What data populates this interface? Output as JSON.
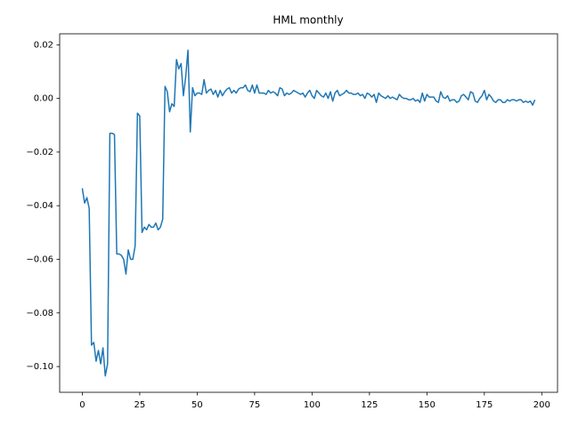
{
  "chart_data": {
    "type": "line",
    "title": "HML monthly",
    "color": "#1f77b4",
    "x": [
      0,
      1,
      2,
      3,
      4,
      5,
      6,
      7,
      8,
      9,
      10,
      11,
      12,
      13,
      14,
      15,
      16,
      17,
      18,
      19,
      20,
      21,
      22,
      23,
      24,
      25,
      26,
      27,
      28,
      29,
      30,
      31,
      32,
      33,
      34,
      35,
      36,
      37,
      38,
      39,
      40,
      41,
      42,
      43,
      44,
      45,
      46,
      47,
      48,
      49,
      50,
      51,
      52,
      53,
      54,
      55,
      56,
      57,
      58,
      59,
      60,
      61,
      62,
      63,
      64,
      65,
      66,
      67,
      68,
      69,
      70,
      71,
      72,
      73,
      74,
      75,
      76,
      77,
      78,
      79,
      80,
      81,
      82,
      83,
      84,
      85,
      86,
      87,
      88,
      89,
      90,
      91,
      92,
      93,
      94,
      95,
      96,
      97,
      98,
      99,
      100,
      101,
      102,
      103,
      104,
      105,
      106,
      107,
      108,
      109,
      110,
      111,
      112,
      113,
      114,
      115,
      116,
      117,
      118,
      119,
      120,
      121,
      122,
      123,
      124,
      125,
      126,
      127,
      128,
      129,
      130,
      131,
      132,
      133,
      134,
      135,
      136,
      137,
      138,
      139,
      140,
      141,
      142,
      143,
      144,
      145,
      146,
      147,
      148,
      149,
      150,
      151,
      152,
      153,
      154,
      155,
      156,
      157,
      158,
      159,
      160,
      161,
      162,
      163,
      164,
      165,
      166,
      167,
      168,
      169,
      170,
      171,
      172,
      173,
      174,
      175,
      176,
      177,
      178,
      179,
      180,
      181,
      182,
      183,
      184,
      185,
      186,
      187,
      188,
      189,
      190,
      191,
      192,
      193,
      194,
      195,
      196,
      197
    ],
    "values": [
      -0.0335,
      -0.039,
      -0.037,
      -0.041,
      -0.092,
      -0.091,
      -0.098,
      -0.094,
      -0.099,
      -0.093,
      -0.1035,
      -0.099,
      -0.013,
      -0.013,
      -0.0135,
      -0.058,
      -0.058,
      -0.0585,
      -0.06,
      -0.0655,
      -0.0565,
      -0.06,
      -0.06,
      -0.055,
      -0.0055,
      -0.0065,
      -0.05,
      -0.048,
      -0.049,
      -0.047,
      -0.048,
      -0.048,
      -0.0465,
      -0.049,
      -0.048,
      -0.045,
      0.0045,
      0.0025,
      -0.005,
      -0.002,
      -0.003,
      0.0145,
      0.011,
      0.013,
      0.001,
      0.008,
      0.018,
      -0.0125,
      0.004,
      0.001,
      0.002,
      0.002,
      0.0015,
      0.007,
      0.002,
      0.003,
      0.0035,
      0.0015,
      0.003,
      0.0005,
      0.003,
      0.001,
      0.0025,
      0.0035,
      0.004,
      0.002,
      0.003,
      0.002,
      0.0035,
      0.004,
      0.004,
      0.005,
      0.003,
      0.0025,
      0.005,
      0.002,
      0.005,
      0.002,
      0.002,
      0.002,
      0.0015,
      0.003,
      0.002,
      0.0025,
      0.002,
      0.001,
      0.004,
      0.0035,
      0.001,
      0.002,
      0.0015,
      0.002,
      0.003,
      0.0025,
      0.002,
      0.0015,
      0.002,
      0.0005,
      0.002,
      0.003,
      0.001,
      0.0,
      0.003,
      0.002,
      0.001,
      0.0005,
      0.002,
      0.0,
      0.0025,
      -0.001,
      0.002,
      0.003,
      0.001,
      0.0015,
      0.002,
      0.003,
      0.002,
      0.002,
      0.0015,
      0.0015,
      0.002,
      0.001,
      0.0015,
      0.0,
      0.002,
      0.0015,
      0.0005,
      0.0015,
      -0.0015,
      0.002,
      0.001,
      0.0005,
      0.0,
      0.001,
      0.0,
      0.0005,
      0.0,
      -0.0005,
      0.0015,
      0.0005,
      0.0,
      0.0,
      -0.0005,
      -0.0005,
      0.0,
      -0.001,
      -0.0005,
      -0.0015,
      0.002,
      -0.001,
      0.0015,
      0.0005,
      0.0005,
      0.0005,
      -0.001,
      -0.0015,
      0.0025,
      0.0005,
      0.0,
      0.001,
      -0.001,
      -0.0005,
      -0.0005,
      -0.0015,
      -0.001,
      0.001,
      0.0015,
      0.0005,
      -0.0005,
      0.0025,
      0.002,
      -0.001,
      -0.0015,
      0.0,
      0.001,
      0.003,
      -0.0005,
      0.0015,
      0.0005,
      -0.001,
      -0.0015,
      -0.0005,
      -0.0005,
      -0.0015,
      -0.0015,
      -0.0005,
      -0.001,
      -0.0005,
      -0.0005,
      -0.001,
      -0.0005,
      -0.0005,
      -0.0015,
      -0.001,
      -0.0015,
      -0.001,
      -0.0025,
      -0.0005
    ],
    "xlim": [
      -9.85,
      206.85
    ],
    "xticks": [
      0,
      25,
      50,
      75,
      100,
      125,
      150,
      175,
      200
    ],
    "ylim": [
      -0.1096,
      0.0241
    ],
    "yticks": [
      {
        "value": -0.1,
        "label": "−0.10"
      },
      {
        "value": -0.08,
        "label": "−0.08"
      },
      {
        "value": -0.06,
        "label": "−0.06"
      },
      {
        "value": -0.04,
        "label": "−0.04"
      },
      {
        "value": -0.02,
        "label": "−0.02"
      },
      {
        "value": 0,
        "label": "0.00"
      },
      0.02
    ],
    "grid": false
  }
}
